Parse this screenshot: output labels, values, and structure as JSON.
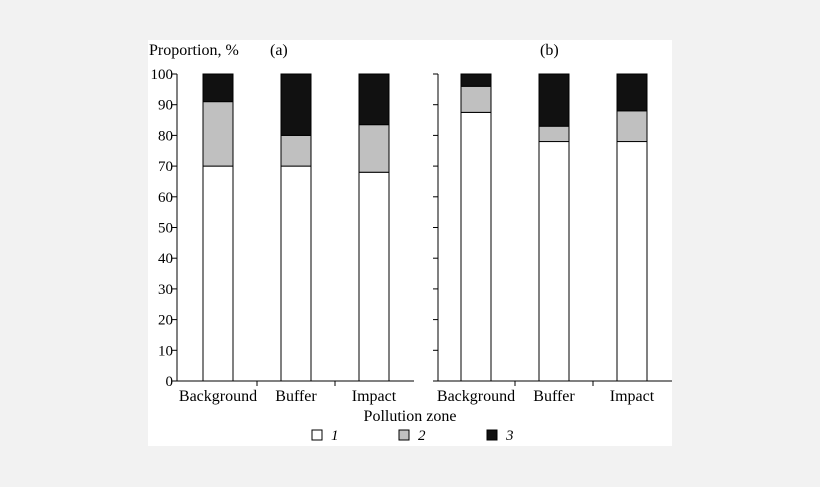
{
  "chart_data": {
    "type": "bar",
    "stacked": true,
    "ylabel": "Proportion, %",
    "xlabel": "Pollution zone",
    "ylim": [
      0,
      100
    ],
    "yticks": [
      0,
      10,
      20,
      30,
      40,
      50,
      60,
      70,
      80,
      90,
      100
    ],
    "categories": [
      "Background",
      "Buffer",
      "Impact"
    ],
    "legend": {
      "placement": "bottom",
      "entries": [
        {
          "label": "1",
          "color": "#ffffff"
        },
        {
          "label": "2",
          "color": "#c0c0c0"
        },
        {
          "label": "3",
          "color": "#111111"
        }
      ]
    },
    "panels": [
      {
        "label": "(a)",
        "series": [
          {
            "name": "1",
            "values": [
              70,
              70,
              68
            ]
          },
          {
            "name": "2",
            "values": [
              21,
              10,
              15.5
            ]
          },
          {
            "name": "3",
            "values": [
              9,
              20,
              16.5
            ]
          }
        ]
      },
      {
        "label": "(b)",
        "series": [
          {
            "name": "1",
            "values": [
              87.5,
              78,
              78
            ]
          },
          {
            "name": "2",
            "values": [
              8.5,
              5,
              10
            ]
          },
          {
            "name": "3",
            "values": [
              4,
              17,
              12
            ]
          }
        ]
      }
    ]
  }
}
